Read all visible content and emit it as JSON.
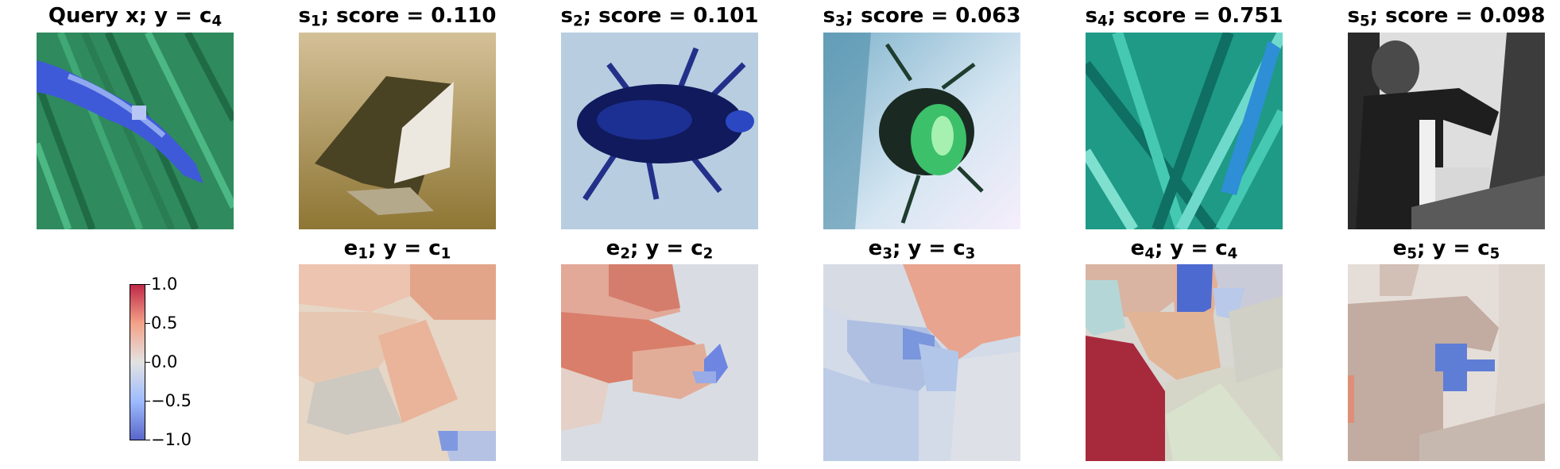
{
  "query_title": {
    "prefix": "Query x; y = c",
    "sub": "4"
  },
  "support": [
    {
      "s": "s",
      "sub": "1",
      "label": "; score = 0.110"
    },
    {
      "s": "s",
      "sub": "2",
      "label": "; score = 0.101"
    },
    {
      "s": "s",
      "sub": "3",
      "label": "; score = 0.063"
    },
    {
      "s": "s",
      "sub": "4",
      "label": "; score = 0.751"
    },
    {
      "s": "s",
      "sub": "5",
      "label": "; score = 0.098"
    }
  ],
  "explanations": [
    {
      "e": "e",
      "sub": "1",
      "mid": "; y = c",
      "csub": "1"
    },
    {
      "e": "e",
      "sub": "2",
      "mid": "; y = c",
      "csub": "2"
    },
    {
      "e": "e",
      "sub": "3",
      "mid": "; y = c",
      "csub": "3"
    },
    {
      "e": "e",
      "sub": "4",
      "mid": "; y = c",
      "csub": "4"
    },
    {
      "e": "e",
      "sub": "5",
      "mid": "; y = c",
      "csub": "5"
    }
  ],
  "colorbar": {
    "ticks": [
      "1.0",
      "0.5",
      "0.0",
      "−0.5",
      "−1.0"
    ],
    "colors": {
      "high": "#b40426",
      "mid": "#dddddd",
      "low": "#3b4cc0"
    }
  }
}
